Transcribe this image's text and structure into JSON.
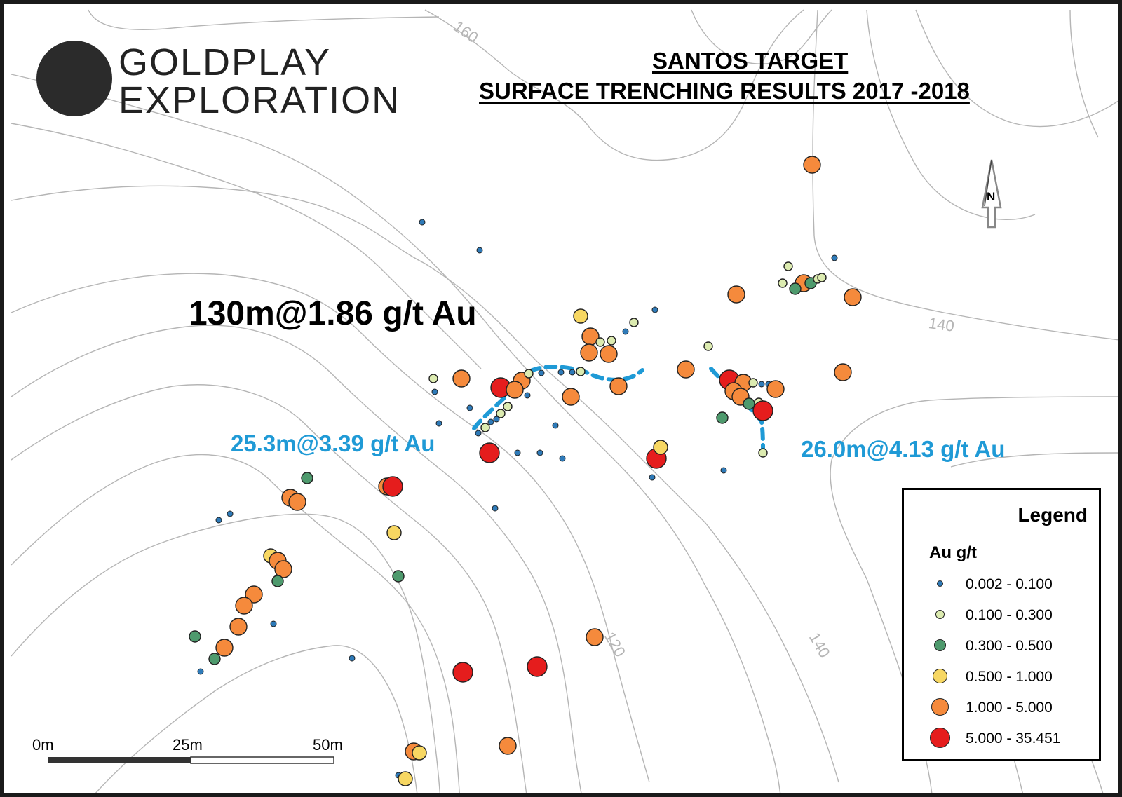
{
  "brand": {
    "line1": "GOLDPLAY",
    "line2": "EXPLORATION",
    "circle_color": "#2b2b2b",
    "mark_color": "#e8c766",
    "mark_icon": "gold-g-logo-icon"
  },
  "title": {
    "line1": "SANTOS TARGET",
    "line2": "SURFACE TRENCHING RESULTS 2017 -2018"
  },
  "annotations": {
    "main_intercept": "130m@1.86 g/t Au",
    "intercept_west": "25.3m@3.39 g/t Au",
    "intercept_east": "26.0m@4.13 g/t Au"
  },
  "contour_labels": [
    "160",
    "140",
    "120",
    "140"
  ],
  "north_arrow": {
    "letter": "N",
    "icon": "north-arrow-icon"
  },
  "scale_bar": {
    "labels": [
      "0m",
      "25m",
      "50m"
    ]
  },
  "legend": {
    "title": "Legend",
    "subtitle": "Au g/t",
    "classes": [
      {
        "label": "0.002 - 0.100",
        "color": "#2e7ab8",
        "size": "xs"
      },
      {
        "label": "0.100 - 0.300",
        "color": "#dcebb0",
        "size": "s"
      },
      {
        "label": "0.300 - 0.500",
        "color": "#4e9a6d",
        "size": "m"
      },
      {
        "label": "0.500 - 1.000",
        "color": "#f7d762",
        "size": "l"
      },
      {
        "label": "1.000 - 5.000",
        "color": "#f58a3c",
        "size": "xl"
      },
      {
        "label": "5.000 - 35.451",
        "color": "#e51d1d",
        "size": "xxl"
      }
    ]
  },
  "colors": {
    "trench_line": "#1f9ad6",
    "contour": "#b5b5b5"
  }
}
